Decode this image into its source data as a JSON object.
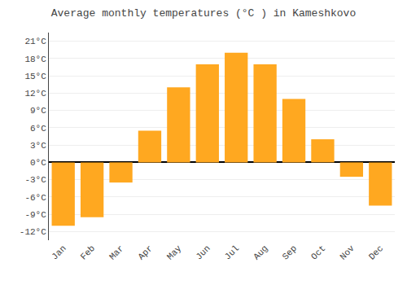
{
  "chart_data": {
    "type": "bar",
    "title": "Average monthly temperatures (°C ) in Kameshkovo",
    "categories": [
      "Jan",
      "Feb",
      "Mar",
      "Apr",
      "May",
      "Jun",
      "Jul",
      "Aug",
      "Sep",
      "Oct",
      "Nov",
      "Dec"
    ],
    "values": [
      -11.0,
      -9.5,
      -3.5,
      5.5,
      13.0,
      17.0,
      19.0,
      17.0,
      11.0,
      4.0,
      -2.5,
      -7.5
    ],
    "color": "#FFA820",
    "ylim": [
      -13.5,
      22.5
    ],
    "yticks": [
      {
        "value": -12,
        "label": "-12°C"
      },
      {
        "value": -9,
        "label": "-9°C"
      },
      {
        "value": -6,
        "label": "-6°C"
      },
      {
        "value": -3,
        "label": "-3°C"
      },
      {
        "value": 0,
        "label": "0°C"
      },
      {
        "value": 3,
        "label": "3°C"
      },
      {
        "value": 6,
        "label": "6°C"
      },
      {
        "value": 9,
        "label": "9°C"
      },
      {
        "value": 12,
        "label": "12°C"
      },
      {
        "value": 15,
        "label": "15°C"
      },
      {
        "value": 18,
        "label": "18°C"
      },
      {
        "value": 21,
        "label": "21°C"
      }
    ],
    "grid": true
  }
}
